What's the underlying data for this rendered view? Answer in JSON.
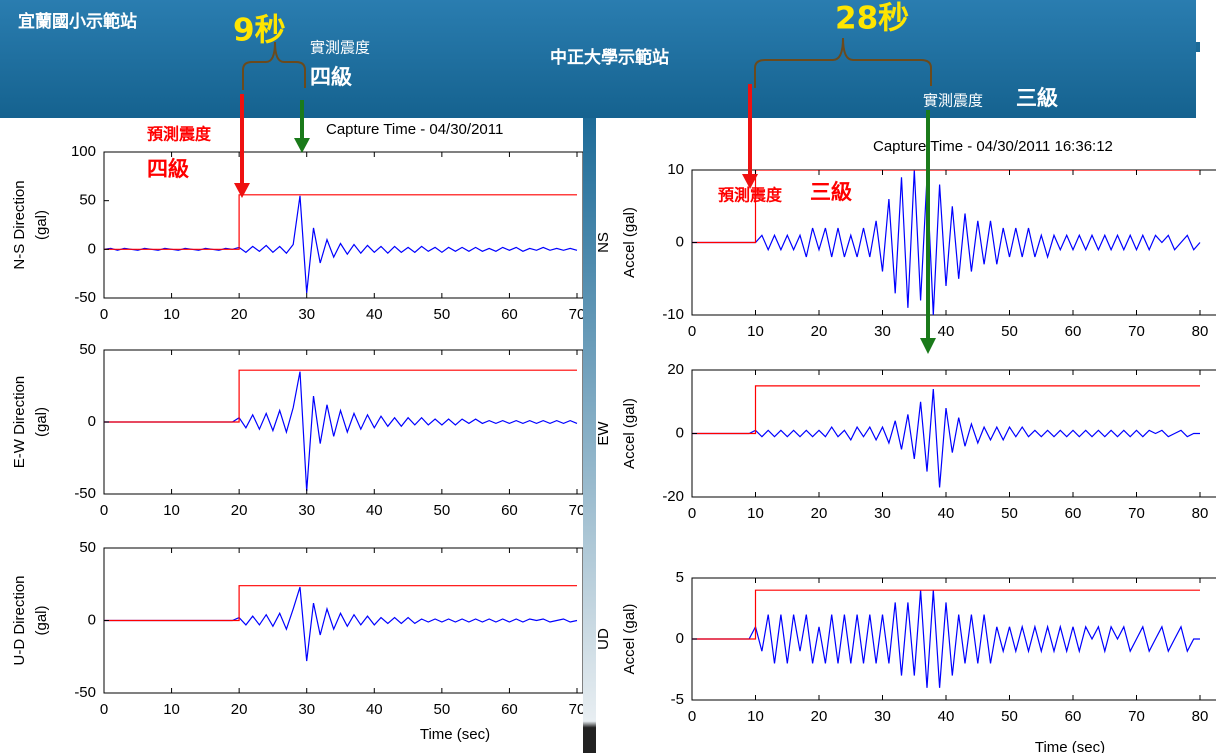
{
  "header": {
    "station_left": "宜蘭國小示範站",
    "station_right": "中正大學示範站"
  },
  "annotations": {
    "left_delay": "9秒",
    "left_measured_label": "實測震度",
    "left_measured_level": "四級",
    "left_predicted_label": "預測震度",
    "left_predicted_level": "四級",
    "right_delay": "28秒",
    "right_measured_label": "實測震度",
    "right_measured_level": "三級",
    "right_predicted_label": "預測震度",
    "right_predicted_level": "三級"
  },
  "chart_data": [
    {
      "type": "line",
      "title": "Capture Time - 04/30/2011",
      "ylabel": [
        "N-S Direction",
        "(gal)"
      ],
      "xlim": [
        0,
        70
      ],
      "ylim": [
        -50,
        100
      ],
      "xticks": [
        0,
        10,
        20,
        30,
        40,
        50,
        60,
        70
      ],
      "yticks": [
        -50,
        0,
        50,
        100
      ],
      "series": [
        {
          "color": "#0000ff",
          "x": [
            0,
            1,
            2,
            3,
            4,
            5,
            6,
            7,
            8,
            9,
            10,
            11,
            12,
            13,
            14,
            15,
            16,
            17,
            18,
            19,
            20,
            21,
            22,
            23,
            24,
            25,
            26,
            27,
            28,
            29,
            30,
            31,
            32,
            33,
            34,
            35,
            36,
            37,
            38,
            39,
            40,
            41,
            42,
            43,
            44,
            45,
            46,
            47,
            48,
            49,
            50,
            51,
            52,
            53,
            54,
            55,
            56,
            57,
            58,
            59,
            60,
            61,
            62,
            63,
            64,
            65,
            66,
            67,
            68,
            69,
            70
          ],
          "values": [
            0,
            1,
            -1,
            1,
            0,
            -1,
            1,
            0,
            -1,
            1,
            0,
            -1,
            1,
            0,
            -1,
            1,
            0,
            -1,
            1,
            0,
            2,
            -3,
            3,
            -2,
            4,
            -3,
            3,
            -4,
            5,
            55,
            -45,
            22,
            -14,
            10,
            -8,
            6,
            -5,
            5,
            -4,
            4,
            -3,
            3,
            -4,
            3,
            -3,
            2,
            -3,
            3,
            -2,
            2,
            -3,
            2,
            -2,
            2,
            -2,
            2,
            -2,
            1,
            -2,
            2,
            -1,
            2,
            -2,
            1,
            -1,
            2,
            -1,
            1,
            -1,
            1,
            -1
          ]
        },
        {
          "color": "#ff0000",
          "x": [
            0,
            20,
            20,
            70
          ],
          "values": [
            0,
            0,
            56,
            56
          ]
        }
      ]
    },
    {
      "type": "line",
      "ylabel": [
        "E-W Direction",
        "(gal)"
      ],
      "xlim": [
        0,
        70
      ],
      "ylim": [
        -50,
        50
      ],
      "xticks": [
        0,
        10,
        20,
        30,
        40,
        50,
        60,
        70
      ],
      "yticks": [
        -50,
        0,
        50
      ],
      "series": [
        {
          "color": "#0000ff",
          "x": [
            0,
            1,
            2,
            3,
            4,
            5,
            6,
            7,
            8,
            9,
            10,
            11,
            12,
            13,
            14,
            15,
            16,
            17,
            18,
            19,
            20,
            21,
            22,
            23,
            24,
            25,
            26,
            27,
            28,
            29,
            30,
            31,
            32,
            33,
            34,
            35,
            36,
            37,
            38,
            39,
            40,
            41,
            42,
            43,
            44,
            45,
            46,
            47,
            48,
            49,
            50,
            51,
            52,
            53,
            54,
            55,
            56,
            57,
            58,
            59,
            60,
            61,
            62,
            63,
            64,
            65,
            66,
            67,
            68,
            69,
            70
          ],
          "values": [
            0,
            0,
            0,
            0,
            0,
            0,
            0,
            0,
            0,
            0,
            0,
            0,
            0,
            0,
            0,
            0,
            0,
            0,
            0,
            0,
            3,
            -4,
            5,
            -5,
            6,
            -6,
            8,
            -7,
            10,
            35,
            -48,
            18,
            -15,
            12,
            -10,
            8,
            -7,
            6,
            -5,
            5,
            -4,
            4,
            -3,
            3,
            -3,
            3,
            -2,
            3,
            -2,
            2,
            -2,
            2,
            -2,
            2,
            -1,
            2,
            -1,
            1,
            -1,
            1,
            -1,
            1,
            -1,
            1,
            -1,
            1,
            -1,
            1,
            -1,
            1,
            -1
          ]
        },
        {
          "color": "#ff0000",
          "x": [
            0,
            20,
            20,
            70
          ],
          "values": [
            0,
            0,
            36,
            36
          ]
        }
      ]
    },
    {
      "type": "line",
      "ylabel": [
        "U-D Direction",
        "(gal)"
      ],
      "xlabel": "Time (sec)",
      "xlim": [
        0,
        70
      ],
      "ylim": [
        -50,
        50
      ],
      "xticks": [
        0,
        10,
        20,
        30,
        40,
        50,
        60,
        70
      ],
      "yticks": [
        -50,
        0,
        50
      ],
      "series": [
        {
          "color": "#0000ff",
          "x": [
            0,
            1,
            2,
            3,
            4,
            5,
            6,
            7,
            8,
            9,
            10,
            11,
            12,
            13,
            14,
            15,
            16,
            17,
            18,
            19,
            20,
            21,
            22,
            23,
            24,
            25,
            26,
            27,
            28,
            29,
            30,
            31,
            32,
            33,
            34,
            35,
            36,
            37,
            38,
            39,
            40,
            41,
            42,
            43,
            44,
            45,
            46,
            47,
            48,
            49,
            50,
            51,
            52,
            53,
            54,
            55,
            56,
            57,
            58,
            59,
            60,
            61,
            62,
            63,
            64,
            65,
            66,
            67,
            68,
            69,
            70
          ],
          "values": [
            0,
            0,
            0,
            0,
            0,
            0,
            0,
            0,
            0,
            0,
            0,
            0,
            0,
            0,
            0,
            0,
            0,
            0,
            0,
            0,
            2,
            -3,
            3,
            -3,
            4,
            -4,
            5,
            -6,
            8,
            23,
            -28,
            12,
            -10,
            8,
            -6,
            5,
            -4,
            4,
            -3,
            3,
            -3,
            2,
            -2,
            2,
            -2,
            2,
            -2,
            1,
            -1,
            1,
            -1,
            1,
            -1,
            1,
            -1,
            1,
            -1,
            1,
            -1,
            1,
            -1,
            1,
            -1,
            1,
            0,
            1,
            -1,
            0,
            1,
            -1,
            0
          ]
        },
        {
          "color": "#ff0000",
          "x": [
            0,
            20,
            20,
            70
          ],
          "values": [
            0,
            0,
            24,
            24
          ]
        }
      ]
    },
    {
      "type": "line",
      "title": "Capture Time - 04/30/2011 16:36:12",
      "ylabel": [
        "NS",
        "Accel (gal)"
      ],
      "xlim": [
        0,
        80
      ],
      "ylim": [
        -10,
        10
      ],
      "xticks": [
        0,
        10,
        20,
        30,
        40,
        50,
        60,
        70,
        80
      ],
      "yticks": [
        -10,
        0,
        10
      ],
      "series": [
        {
          "color": "#0000ff",
          "x": [
            0,
            1,
            2,
            3,
            4,
            5,
            6,
            7,
            8,
            9,
            10,
            11,
            12,
            13,
            14,
            15,
            16,
            17,
            18,
            19,
            20,
            21,
            22,
            23,
            24,
            25,
            26,
            27,
            28,
            29,
            30,
            31,
            32,
            33,
            34,
            35,
            36,
            37,
            38,
            39,
            40,
            41,
            42,
            43,
            44,
            45,
            46,
            47,
            48,
            49,
            50,
            51,
            52,
            53,
            54,
            55,
            56,
            57,
            58,
            59,
            60,
            61,
            62,
            63,
            64,
            65,
            66,
            67,
            68,
            69,
            70,
            71,
            72,
            73,
            74,
            75,
            76,
            77,
            78,
            79,
            80
          ],
          "values": [
            0,
            0,
            0,
            0,
            0,
            0,
            0,
            0,
            0,
            0,
            0,
            1,
            -1,
            1,
            -1,
            1,
            -1,
            1,
            -2,
            2,
            -1,
            2,
            -2,
            2,
            -2,
            1,
            -2,
            2,
            -2,
            3,
            -4,
            6,
            -7,
            9,
            -9,
            10,
            -8,
            9,
            -10,
            8,
            -6,
            5,
            -5,
            4,
            -4,
            3,
            -3,
            3,
            -3,
            2,
            -2,
            2,
            -2,
            2,
            -2,
            1,
            -2,
            1,
            -1,
            1,
            -1,
            1,
            -1,
            1,
            -1,
            1,
            -1,
            1,
            -1,
            1,
            -1,
            1,
            -1,
            1,
            0,
            1,
            -1,
            0,
            1,
            -1,
            0
          ]
        },
        {
          "color": "#ff0000",
          "x": [
            0,
            10,
            10,
            80
          ],
          "values": [
            0,
            0,
            10,
            10
          ]
        }
      ]
    },
    {
      "type": "line",
      "ylabel": [
        "EW",
        "Accel (gal)"
      ],
      "xlim": [
        0,
        80
      ],
      "ylim": [
        -20,
        20
      ],
      "xticks": [
        0,
        10,
        20,
        30,
        40,
        50,
        60,
        70,
        80
      ],
      "yticks": [
        -20,
        0,
        20
      ],
      "series": [
        {
          "color": "#0000ff",
          "x": [
            0,
            1,
            2,
            3,
            4,
            5,
            6,
            7,
            8,
            9,
            10,
            11,
            12,
            13,
            14,
            15,
            16,
            17,
            18,
            19,
            20,
            21,
            22,
            23,
            24,
            25,
            26,
            27,
            28,
            29,
            30,
            31,
            32,
            33,
            34,
            35,
            36,
            37,
            38,
            39,
            40,
            41,
            42,
            43,
            44,
            45,
            46,
            47,
            48,
            49,
            50,
            51,
            52,
            53,
            54,
            55,
            56,
            57,
            58,
            59,
            60,
            61,
            62,
            63,
            64,
            65,
            66,
            67,
            68,
            69,
            70,
            71,
            72,
            73,
            74,
            75,
            76,
            77,
            78,
            79,
            80
          ],
          "values": [
            0,
            0,
            0,
            0,
            0,
            0,
            0,
            0,
            0,
            0,
            1,
            -1,
            1,
            -1,
            1,
            -1,
            1,
            -1,
            1,
            -1,
            1,
            -1,
            2,
            -1,
            1,
            -2,
            2,
            -1,
            2,
            -2,
            2,
            -3,
            4,
            -5,
            6,
            -8,
            10,
            -12,
            14,
            -17,
            8,
            -6,
            5,
            -4,
            3,
            -3,
            2,
            -2,
            2,
            -2,
            2,
            -1,
            2,
            -1,
            1,
            -1,
            1,
            -1,
            1,
            -1,
            1,
            -1,
            1,
            -1,
            1,
            -1,
            1,
            -1,
            1,
            -1,
            1,
            -1,
            1,
            0,
            1,
            -1,
            0,
            1,
            -1,
            0,
            0
          ]
        },
        {
          "color": "#ff0000",
          "x": [
            0,
            10,
            10,
            80
          ],
          "values": [
            0,
            0,
            15,
            15
          ]
        }
      ]
    },
    {
      "type": "line",
      "ylabel": [
        "UD",
        "Accel (gal)"
      ],
      "xlabel": "Time (sec)",
      "xlim": [
        0,
        80
      ],
      "ylim": [
        -5,
        5
      ],
      "xticks": [
        0,
        10,
        20,
        30,
        40,
        50,
        60,
        70,
        80
      ],
      "yticks": [
        -5,
        0,
        5
      ],
      "series": [
        {
          "color": "#0000ff",
          "x": [
            0,
            1,
            2,
            3,
            4,
            5,
            6,
            7,
            8,
            9,
            10,
            11,
            12,
            13,
            14,
            15,
            16,
            17,
            18,
            19,
            20,
            21,
            22,
            23,
            24,
            25,
            26,
            27,
            28,
            29,
            30,
            31,
            32,
            33,
            34,
            35,
            36,
            37,
            38,
            39,
            40,
            41,
            42,
            43,
            44,
            45,
            46,
            47,
            48,
            49,
            50,
            51,
            52,
            53,
            54,
            55,
            56,
            57,
            58,
            59,
            60,
            61,
            62,
            63,
            64,
            65,
            66,
            67,
            68,
            69,
            70,
            71,
            72,
            73,
            74,
            75,
            76,
            77,
            78,
            79,
            80
          ],
          "values": [
            0,
            0,
            0,
            0,
            0,
            0,
            0,
            0,
            0,
            0,
            1,
            -1,
            2,
            -2,
            2,
            -2,
            2,
            -1,
            2,
            -2,
            1,
            -2,
            2,
            -2,
            2,
            -2,
            2,
            -2,
            2,
            -2,
            2,
            -2,
            3,
            -3,
            3,
            -3,
            4,
            -4,
            4,
            -4,
            3,
            -3,
            2,
            -2,
            2,
            -2,
            2,
            -2,
            1,
            -1,
            1,
            -1,
            1,
            -1,
            1,
            -1,
            1,
            -1,
            1,
            -1,
            1,
            -1,
            1,
            0,
            1,
            -1,
            1,
            0,
            1,
            -1,
            0,
            1,
            -1,
            0,
            1,
            -1,
            0,
            1,
            -1,
            0,
            0
          ]
        },
        {
          "color": "#ff0000",
          "x": [
            0,
            10,
            10,
            80
          ],
          "values": [
            0,
            0,
            4,
            4
          ]
        }
      ]
    }
  ]
}
